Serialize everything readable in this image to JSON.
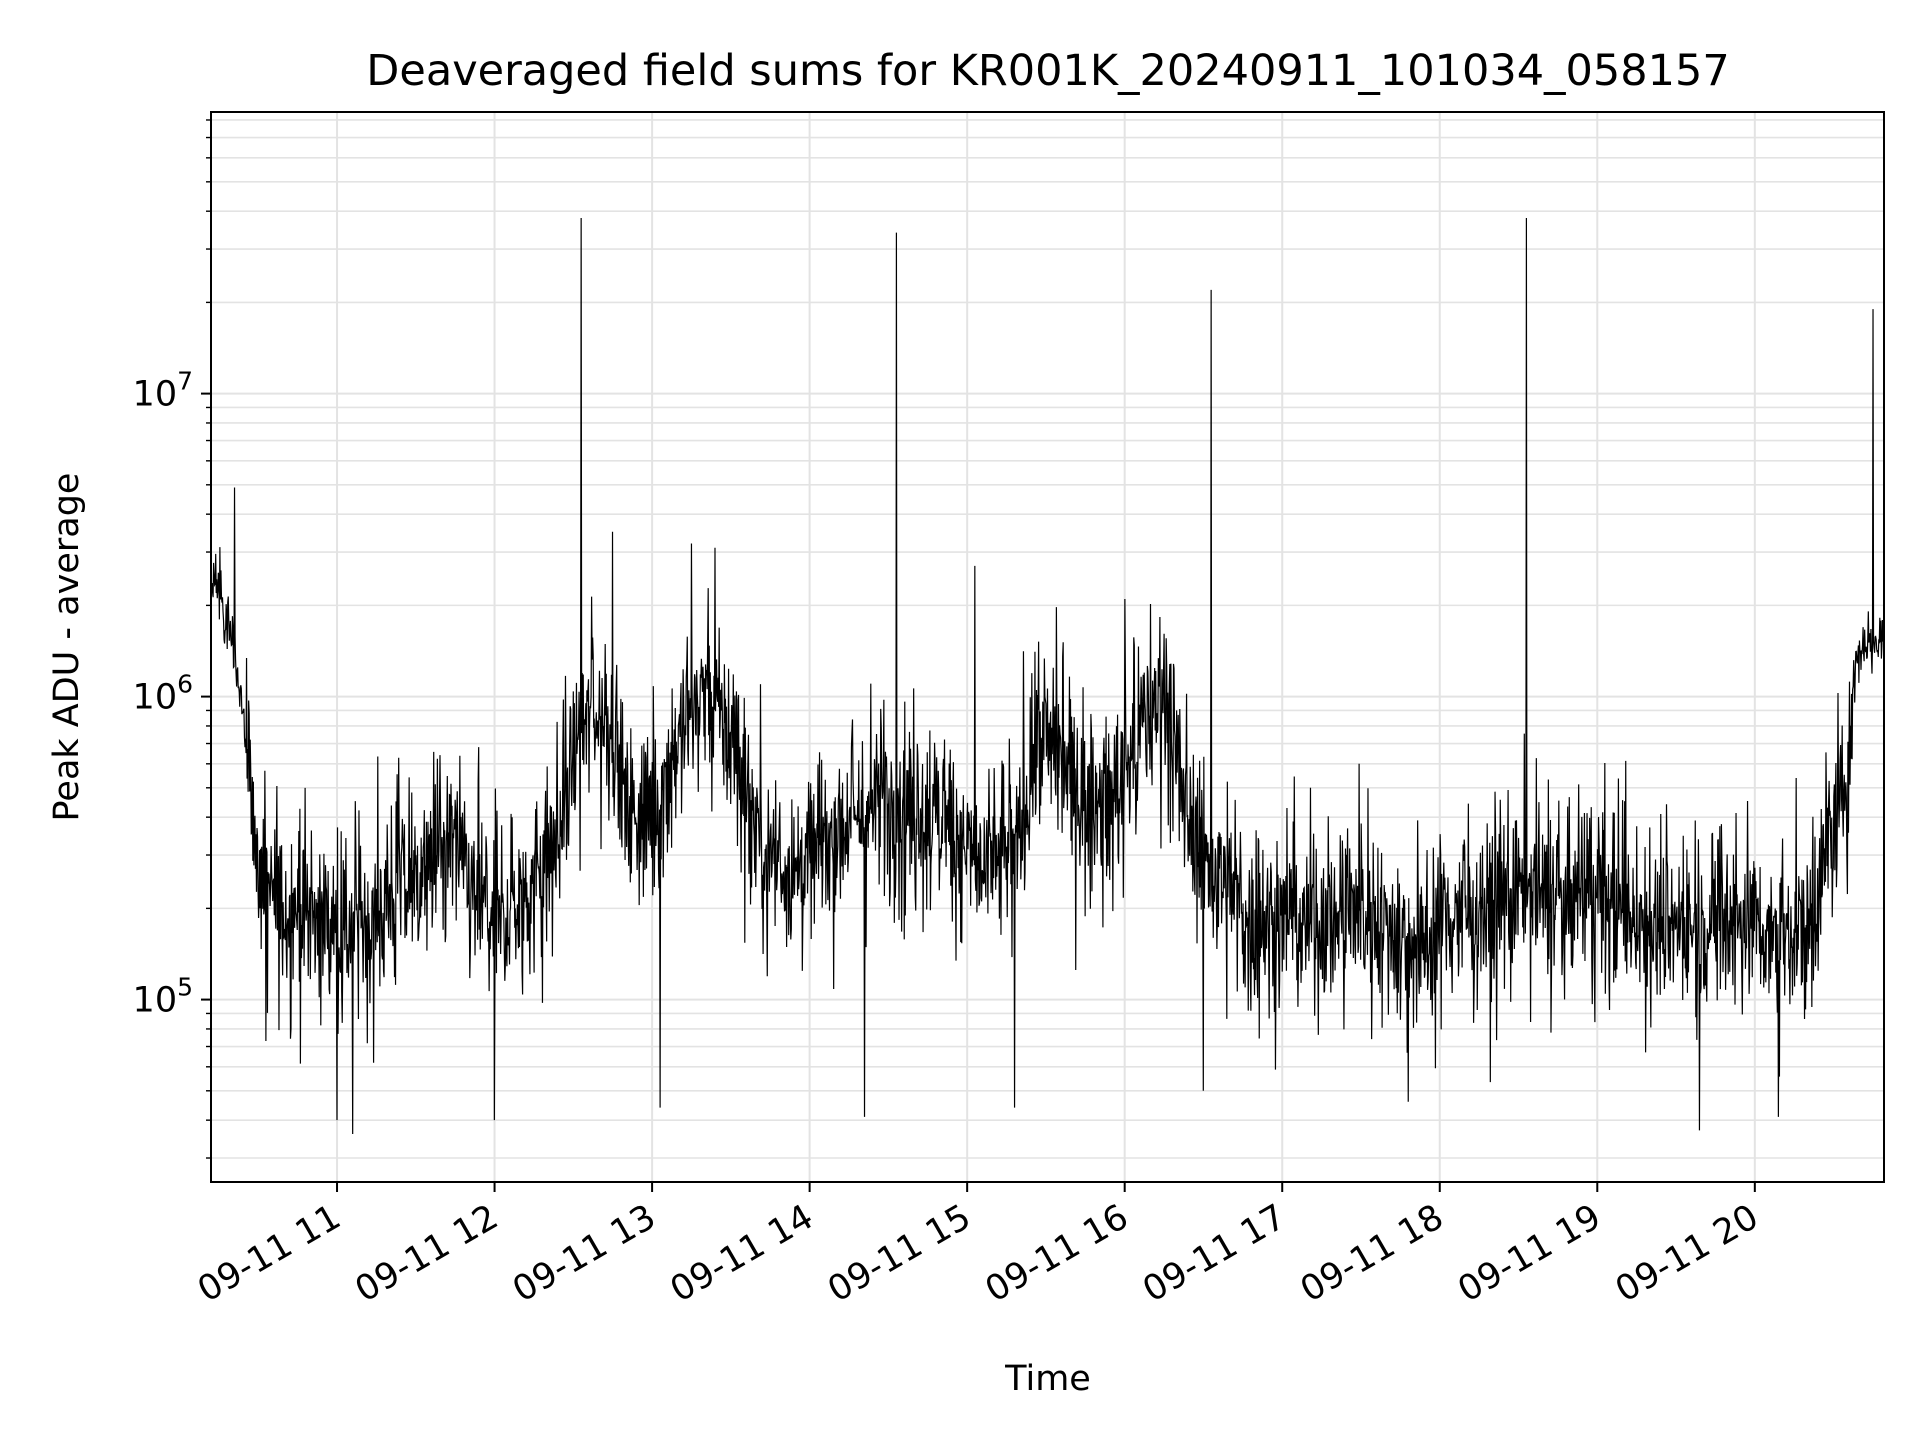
{
  "chart_data": {
    "type": "line",
    "title": "Deaveraged field sums for KR001K_20240911_101034_058157",
    "xlabel": "Time",
    "ylabel": "Peak ADU - average",
    "x_tick_labels": [
      "09-11 11",
      "09-11 12",
      "09-11 13",
      "09-11 14",
      "09-11 15",
      "09-11 16",
      "09-11 17",
      "09-11 18",
      "09-11 19",
      "09-11 20"
    ],
    "x_tick_hours": [
      11,
      12,
      13,
      14,
      15,
      16,
      17,
      18,
      19,
      20
    ],
    "xlim_hours": [
      10.2,
      20.82
    ],
    "y_scale": "log",
    "y_tick_labels": [
      {
        "base": "10",
        "exp": "5",
        "value": 100000
      },
      {
        "base": "10",
        "exp": "6",
        "value": 1000000
      },
      {
        "base": "10",
        "exp": "7",
        "value": 10000000
      }
    ],
    "ylim": [
      25000,
      85000000
    ],
    "grid": true,
    "line_color": "#000000",
    "series": [
      {
        "envelope": [
          {
            "x": 10.2,
            "y": 2500000
          },
          {
            "x": 10.3,
            "y": 1800000
          },
          {
            "x": 10.4,
            "y": 1000000
          },
          {
            "x": 10.5,
            "y": 260000
          },
          {
            "x": 10.6,
            "y": 210000
          },
          {
            "x": 10.8,
            "y": 200000
          },
          {
            "x": 11.0,
            "y": 160000
          },
          {
            "x": 11.2,
            "y": 180000
          },
          {
            "x": 11.4,
            "y": 240000
          },
          {
            "x": 11.6,
            "y": 280000
          },
          {
            "x": 11.75,
            "y": 330000
          },
          {
            "x": 11.85,
            "y": 230000
          },
          {
            "x": 12.0,
            "y": 180000
          },
          {
            "x": 12.2,
            "y": 220000
          },
          {
            "x": 12.4,
            "y": 330000
          },
          {
            "x": 12.5,
            "y": 650000
          },
          {
            "x": 12.6,
            "y": 880000
          },
          {
            "x": 12.75,
            "y": 900000
          },
          {
            "x": 12.85,
            "y": 420000
          },
          {
            "x": 13.0,
            "y": 420000
          },
          {
            "x": 13.2,
            "y": 800000
          },
          {
            "x": 13.35,
            "y": 1100000
          },
          {
            "x": 13.5,
            "y": 720000
          },
          {
            "x": 13.7,
            "y": 320000
          },
          {
            "x": 13.9,
            "y": 260000
          },
          {
            "x": 14.1,
            "y": 330000
          },
          {
            "x": 14.3,
            "y": 400000
          },
          {
            "x": 14.5,
            "y": 470000
          },
          {
            "x": 14.7,
            "y": 420000
          },
          {
            "x": 14.9,
            "y": 380000
          },
          {
            "x": 15.1,
            "y": 270000
          },
          {
            "x": 15.3,
            "y": 300000
          },
          {
            "x": 15.45,
            "y": 750000
          },
          {
            "x": 15.55,
            "y": 700000
          },
          {
            "x": 15.75,
            "y": 470000
          },
          {
            "x": 15.9,
            "y": 420000
          },
          {
            "x": 16.05,
            "y": 650000
          },
          {
            "x": 16.25,
            "y": 1100000
          },
          {
            "x": 16.35,
            "y": 500000
          },
          {
            "x": 16.6,
            "y": 240000
          },
          {
            "x": 16.8,
            "y": 190000
          },
          {
            "x": 17.0,
            "y": 180000
          },
          {
            "x": 17.3,
            "y": 190000
          },
          {
            "x": 17.6,
            "y": 190000
          },
          {
            "x": 17.9,
            "y": 150000
          },
          {
            "x": 18.0,
            "y": 185000
          },
          {
            "x": 18.3,
            "y": 210000
          },
          {
            "x": 18.6,
            "y": 230000
          },
          {
            "x": 18.8,
            "y": 210000
          },
          {
            "x": 19.0,
            "y": 230000
          },
          {
            "x": 19.2,
            "y": 190000
          },
          {
            "x": 19.5,
            "y": 180000
          },
          {
            "x": 19.7,
            "y": 180000
          },
          {
            "x": 19.9,
            "y": 190000
          },
          {
            "x": 20.1,
            "y": 170000
          },
          {
            "x": 20.35,
            "y": 170000
          },
          {
            "x": 20.45,
            "y": 320000
          },
          {
            "x": 20.55,
            "y": 420000
          },
          {
            "x": 20.65,
            "y": 1400000
          },
          {
            "x": 20.82,
            "y": 1600000
          }
        ],
        "spikes": [
          {
            "x": 10.35,
            "y": 4900000
          },
          {
            "x": 12.55,
            "y": 38000000
          },
          {
            "x": 12.75,
            "y": 3500000
          },
          {
            "x": 13.25,
            "y": 3200000
          },
          {
            "x": 13.4,
            "y": 3100000
          },
          {
            "x": 14.55,
            "y": 34000000
          },
          {
            "x": 15.05,
            "y": 2700000
          },
          {
            "x": 16.0,
            "y": 2100000
          },
          {
            "x": 16.55,
            "y": 22000000
          },
          {
            "x": 18.55,
            "y": 38000000
          },
          {
            "x": 20.75,
            "y": 19000000
          }
        ],
        "dips": [
          {
            "x": 10.55,
            "y": 73000
          },
          {
            "x": 11.0,
            "y": 40000
          },
          {
            "x": 11.1,
            "y": 36000
          },
          {
            "x": 12.0,
            "y": 40000
          },
          {
            "x": 13.05,
            "y": 44000
          },
          {
            "x": 14.35,
            "y": 41000
          },
          {
            "x": 15.3,
            "y": 44000
          },
          {
            "x": 16.5,
            "y": 50000
          },
          {
            "x": 17.8,
            "y": 46000
          },
          {
            "x": 19.65,
            "y": 37000
          },
          {
            "x": 20.15,
            "y": 41000
          }
        ]
      }
    ]
  }
}
